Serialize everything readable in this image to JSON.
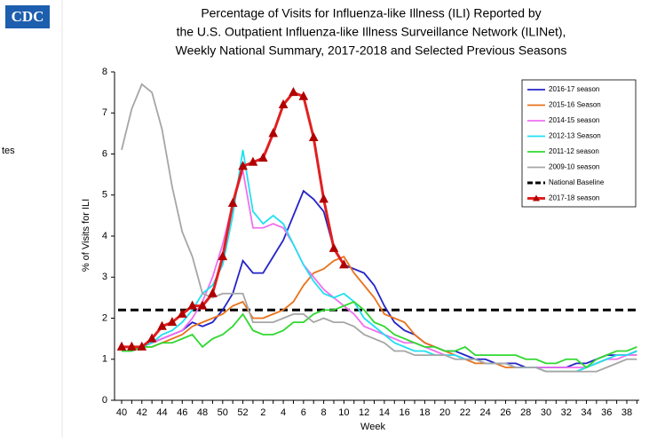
{
  "page": {
    "logo": "CDC",
    "sidebar": "tes"
  },
  "chart_data": {
    "type": "line",
    "title": [
      "Percentage of Visits for Influenza-like Illness (ILI) Reported by",
      "the U.S. Outpatient Influenza-like Illness Surveillance Network (ILINet),",
      "Weekly National Summary, 2017-2018 and Selected Previous Seasons"
    ],
    "x_label": "Week",
    "y_label": "% of Visits for ILI",
    "categories": [
      "40",
      null,
      "42",
      null,
      "44",
      null,
      "46",
      null,
      "48",
      null,
      "50",
      null,
      "52",
      null,
      "2",
      null,
      "4",
      null,
      "6",
      null,
      "8",
      null,
      "10",
      null,
      "12",
      null,
      "14",
      null,
      "16",
      null,
      "18",
      null,
      "20",
      null,
      "22",
      null,
      "24",
      null,
      "26",
      null,
      "28",
      null,
      "30",
      null,
      "32",
      null,
      "34",
      null,
      "36",
      null,
      "38",
      null
    ],
    "ylim": [
      0,
      8
    ],
    "yticks": [
      0,
      1,
      2,
      3,
      4,
      5,
      6,
      7,
      8
    ],
    "baseline": {
      "name": "National Baseline",
      "value": 2.2,
      "color": "#000000"
    },
    "series": [
      {
        "name": "2016-17 season",
        "color": "#2424c8",
        "values": [
          1.3,
          1.3,
          1.3,
          1.4,
          1.5,
          1.6,
          1.7,
          1.9,
          1.8,
          1.9,
          2.2,
          2.6,
          3.4,
          3.1,
          3.1,
          3.5,
          3.9,
          4.5,
          5.1,
          4.9,
          4.6,
          3.7,
          3.3,
          3.2,
          3.1,
          2.8,
          2.3,
          1.9,
          1.7,
          1.6,
          1.4,
          1.3,
          1.2,
          1.2,
          1.1,
          1.0,
          1.0,
          0.9,
          0.9,
          0.9,
          0.8,
          0.8,
          0.8,
          0.8,
          0.8,
          0.9,
          0.9,
          1.0,
          1.1,
          1.1,
          1.1,
          1.2
        ]
      },
      {
        "name": "2015-16 Season",
        "color": "#e8731c",
        "values": [
          1.3,
          1.3,
          1.3,
          1.3,
          1.4,
          1.5,
          1.6,
          1.8,
          1.9,
          2.0,
          2.1,
          2.3,
          2.4,
          2.0,
          2.0,
          2.1,
          2.2,
          2.4,
          2.8,
          3.1,
          3.2,
          3.4,
          3.5,
          3.1,
          2.8,
          2.5,
          2.1,
          2.0,
          1.9,
          1.6,
          1.4,
          1.3,
          1.2,
          1.1,
          1.0,
          0.9,
          0.9,
          0.9,
          0.8,
          0.8,
          0.8,
          0.8,
          0.7,
          0.7,
          0.7,
          0.7,
          0.8,
          0.9,
          1.0,
          1.1,
          1.1,
          1.1
        ]
      },
      {
        "name": "2014-15 season",
        "color": "#f070f0",
        "values": [
          1.2,
          1.2,
          1.3,
          1.4,
          1.5,
          1.6,
          1.7,
          2.0,
          2.4,
          3.0,
          3.8,
          4.8,
          5.6,
          4.2,
          4.2,
          4.3,
          4.2,
          3.8,
          3.3,
          3.0,
          2.7,
          2.5,
          2.3,
          2.1,
          1.8,
          1.7,
          1.6,
          1.5,
          1.4,
          1.4,
          1.3,
          1.2,
          1.1,
          1.1,
          1.0,
          1.0,
          0.9,
          0.9,
          0.9,
          0.8,
          0.8,
          0.8,
          0.8,
          0.8,
          0.8,
          0.8,
          0.8,
          0.9,
          1.0,
          1.0,
          1.1,
          1.1
        ]
      },
      {
        "name": "2012-13 Season",
        "color": "#20e0f0",
        "values": [
          1.2,
          1.2,
          1.3,
          1.4,
          1.6,
          1.7,
          1.9,
          2.2,
          2.6,
          2.8,
          3.3,
          4.5,
          6.1,
          4.6,
          4.3,
          4.5,
          4.3,
          3.8,
          3.3,
          2.9,
          2.6,
          2.5,
          2.6,
          2.4,
          2.0,
          1.8,
          1.6,
          1.4,
          1.3,
          1.2,
          1.2,
          1.1,
          1.1,
          1.1,
          1.0,
          1.0,
          0.9,
          0.9,
          0.9,
          0.8,
          0.8,
          0.8,
          0.7,
          0.7,
          0.7,
          0.7,
          0.8,
          0.9,
          1.0,
          1.1,
          1.1,
          1.2
        ]
      },
      {
        "name": "2011-12 season",
        "color": "#30d830",
        "values": [
          1.2,
          1.2,
          1.3,
          1.3,
          1.4,
          1.4,
          1.5,
          1.6,
          1.3,
          1.5,
          1.6,
          1.8,
          2.1,
          1.7,
          1.6,
          1.6,
          1.7,
          1.9,
          1.9,
          2.1,
          2.2,
          2.2,
          2.3,
          2.4,
          2.2,
          1.9,
          1.8,
          1.6,
          1.5,
          1.4,
          1.3,
          1.3,
          1.2,
          1.2,
          1.3,
          1.1,
          1.1,
          1.1,
          1.1,
          1.1,
          1.0,
          1.0,
          0.9,
          0.9,
          1.0,
          1.0,
          0.8,
          1.0,
          1.1,
          1.2,
          1.2,
          1.3
        ]
      },
      {
        "name": "2009-10 season",
        "color": "#a6a6a6",
        "values": [
          6.1,
          7.1,
          7.7,
          7.5,
          6.6,
          5.2,
          4.1,
          3.5,
          2.6,
          2.5,
          2.6,
          2.6,
          2.6,
          1.9,
          1.9,
          1.9,
          2.0,
          2.1,
          2.1,
          1.9,
          2.0,
          1.9,
          1.9,
          1.8,
          1.6,
          1.5,
          1.4,
          1.2,
          1.2,
          1.1,
          1.1,
          1.1,
          1.1,
          1.0,
          1.0,
          1.0,
          0.9,
          0.9,
          0.9,
          0.8,
          0.8,
          0.8,
          0.7,
          0.7,
          0.7,
          0.7,
          0.7,
          0.7,
          0.8,
          0.9,
          1.0,
          1.0
        ]
      },
      {
        "name": "2017-18 season",
        "color": "#e02020",
        "marker": "triangle",
        "marker_color": "#b00000",
        "values": [
          1.3,
          1.3,
          1.3,
          1.5,
          1.8,
          1.9,
          2.1,
          2.3,
          2.3,
          2.6,
          3.5,
          4.8,
          5.7,
          5.8,
          5.9,
          6.5,
          7.2,
          7.5,
          7.4,
          6.4,
          4.9,
          3.7,
          3.3,
          null,
          null,
          null,
          null,
          null,
          null,
          null,
          null,
          null,
          null,
          null,
          null,
          null,
          null,
          null,
          null,
          null,
          null,
          null,
          null,
          null,
          null,
          null,
          null,
          null,
          null,
          null,
          null,
          null
        ]
      }
    ]
  }
}
